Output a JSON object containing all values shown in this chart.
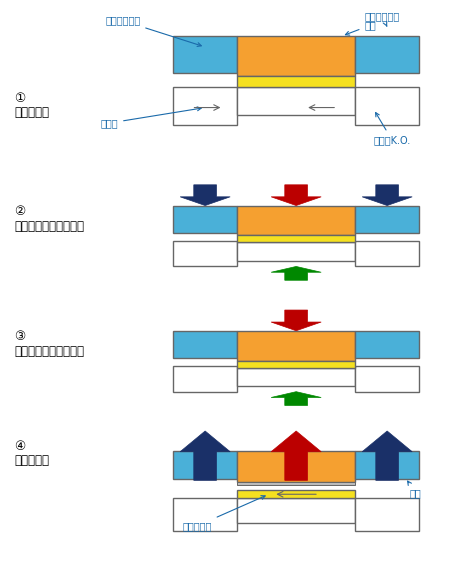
{
  "bg_color": "#ffffff",
  "label_color": "#1a6aaa",
  "orange": "#f5a030",
  "blue": "#4ab0d8",
  "yellow": "#f5e020",
  "dark_blue": "#1a3068",
  "red": "#bb0000",
  "green": "#008800",
  "outline": "#666666",
  "sections": [
    {
      "num": "①",
      "label": "噛み合い前"
    },
    {
      "num": "②",
      "label": "アウターでの歯形成形"
    },
    {
      "num": "③",
      "label": "インナーでの押え込み"
    },
    {
      "num": "④",
      "label": "製品の排出"
    }
  ]
}
